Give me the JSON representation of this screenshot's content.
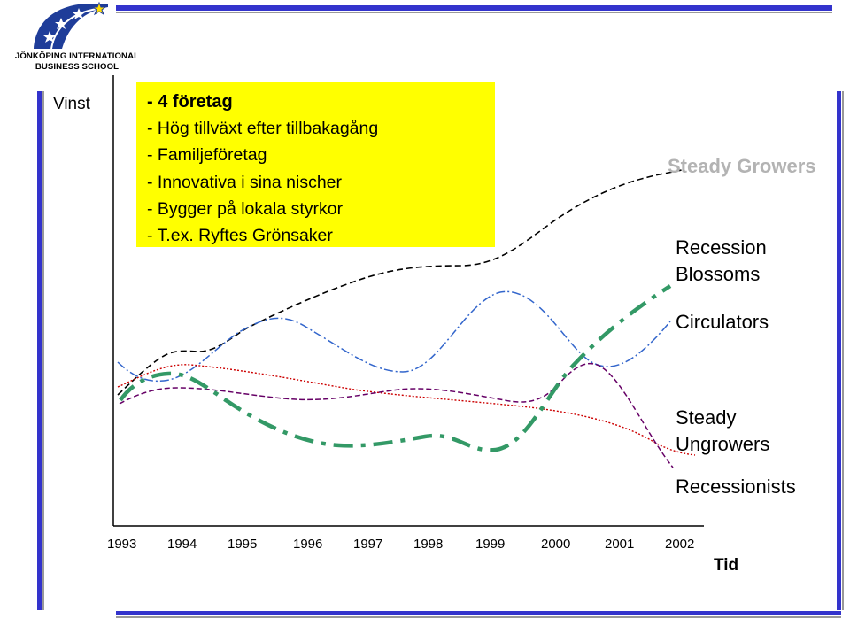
{
  "logo": {
    "line1": "JÖNKÖPING INTERNATIONAL",
    "line2": "BUSINESS SCHOOL"
  },
  "colors": {
    "frame_blue": "#3333cc",
    "frame_gray": "#999999",
    "callout_yellow": "#ffff00",
    "steady_growers": "#000000",
    "recession_blossoms": "#339966",
    "circulators": "#3366cc",
    "steady_ungrowers": "#cc0000",
    "recessionists": "#660066"
  },
  "axes": {
    "y_label": "Vinst",
    "x_label": "Tid",
    "x_ticks": [
      "1993",
      "1994",
      "1995",
      "1996",
      "1997",
      "1998",
      "1999",
      "2000",
      "2001",
      "2002"
    ]
  },
  "callout": {
    "lines": [
      "- 4 företag",
      "- Hög tillväxt efter tillbakagång",
      "- Familjeföretag",
      "- Innovativa i sina nischer",
      "- Bygger på lokala styrkor",
      "- T.ex. Ryftes Grönsaker"
    ]
  },
  "categories": {
    "steady_growers": "Steady Growers",
    "recession_blossoms_1": "Recession",
    "recession_blossoms_2": "Blossoms",
    "circulators": "Circulators",
    "steady_ungrowers_1": "Steady",
    "steady_ungrowers_2": "Ungrowers",
    "recessionists": "Recessionists"
  }
}
